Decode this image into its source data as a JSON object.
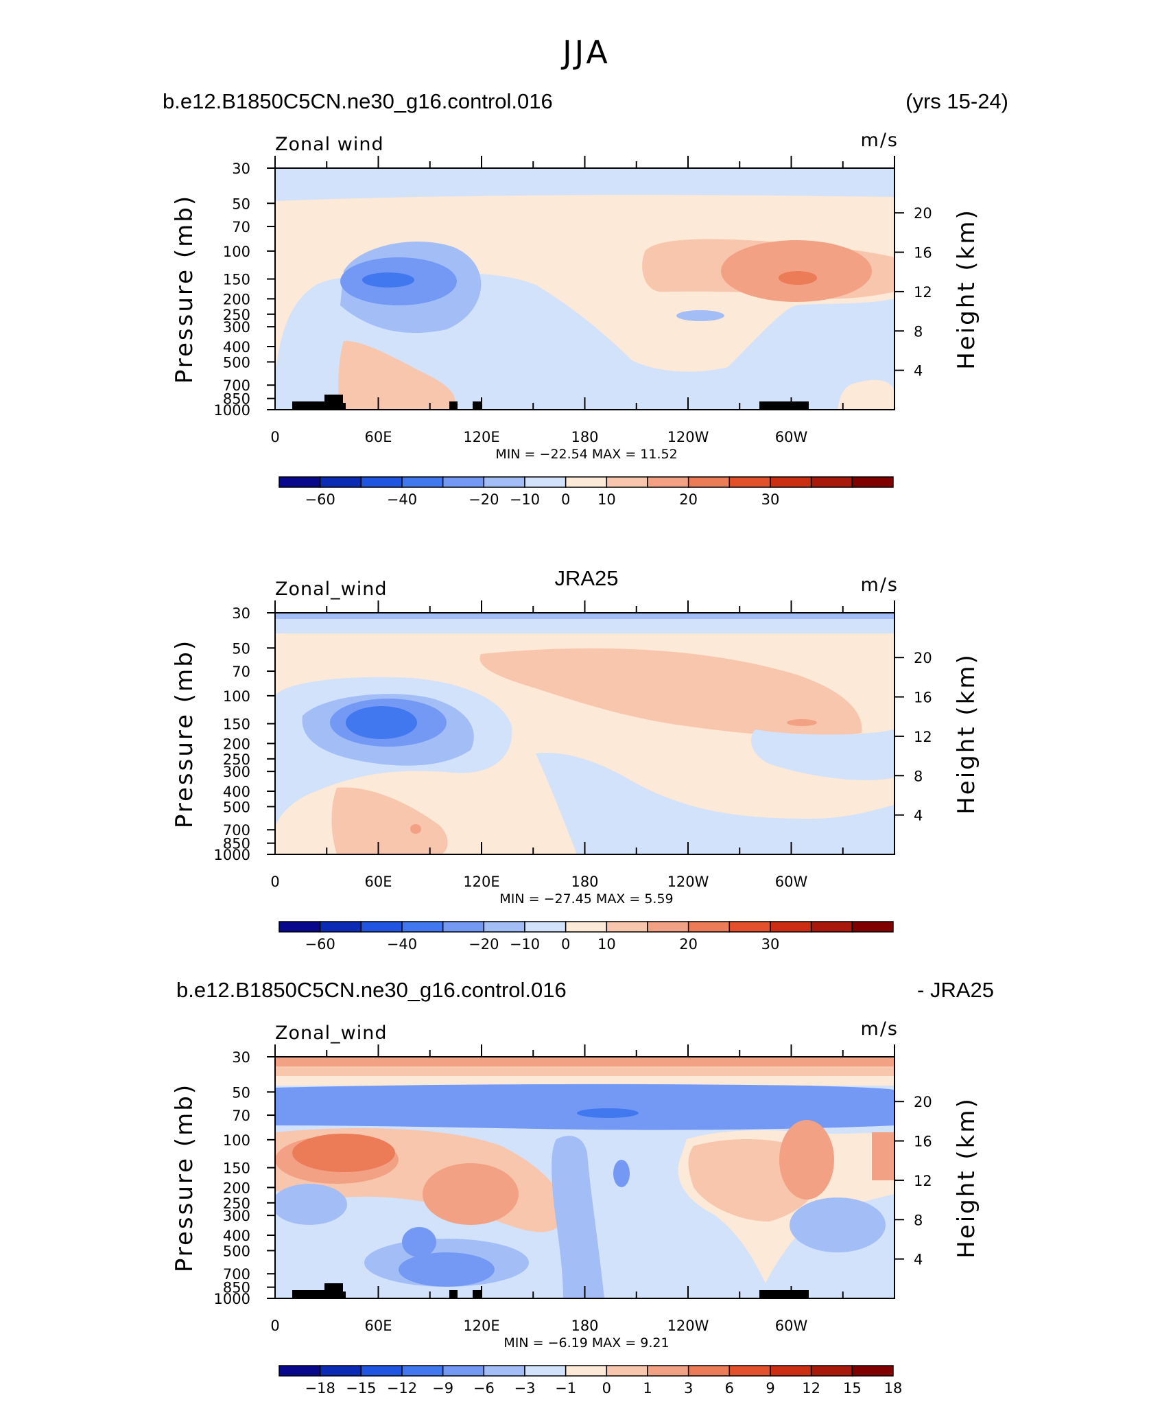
{
  "page": {
    "title": "JJA",
    "case_name": "b.e12.B1850C5CN.ne30_g16.control.016",
    "years": "(yrs 15-24)",
    "obs_name": "JRA25",
    "diff_right": "- JRA25"
  },
  "common": {
    "left_ylabel": "Pressure (mb)",
    "right_ylabel": "Height (km)",
    "units": "m/s",
    "pressure_ticks": [
      "30",
      "50",
      "70",
      "100",
      "150",
      "200",
      "250",
      "300",
      "400",
      "500",
      "700",
      "850",
      "1000"
    ],
    "height_ticks": [
      "20",
      "16",
      "12",
      "8",
      "4"
    ],
    "lon_labels": [
      "0",
      "60E",
      "120E",
      "180",
      "120W",
      "60W"
    ]
  },
  "colors": {
    "abs_levels": [
      "#08088c",
      "#0c2bb4",
      "#1f55e0",
      "#4178f0",
      "#7399f4",
      "#a3bef7",
      "#d1e2fa",
      "#fde9d7",
      "#f8c6ad",
      "#f2a184",
      "#ec7b57",
      "#e3512c",
      "#cc2e14",
      "#a8180b",
      "#800000"
    ],
    "diff_levels": [
      "#08088c",
      "#0c2bb4",
      "#1f55e0",
      "#4178f0",
      "#7399f4",
      "#a3bef7",
      "#d1e2fa",
      "#fde9d7",
      "#f8c6ad",
      "#f2a184",
      "#ec7b57",
      "#e3512c",
      "#cc2e14",
      "#a8180b",
      "#800000"
    ]
  },
  "panels": [
    {
      "header_left": "b.e12.B1850C5CN.ne30_g16.control.016",
      "header_right": "(yrs 15-24)",
      "field_label": "Zonal wind",
      "units": "m/s",
      "stats": "MIN =  −22.54   MAX =   11.52",
      "colorbar_labels": [
        "−60",
        "−40",
        "−20",
        "−10",
        "0",
        "10",
        "20",
        "30"
      ],
      "has_topo": true
    },
    {
      "header_left": "",
      "header_center": "JRA25",
      "field_label": "Zonal_wind",
      "units": "m/s",
      "stats": "MIN =  −27.45   MAX =    5.59",
      "colorbar_labels": [
        "−60",
        "−40",
        "−20",
        "−10",
        "0",
        "10",
        "20",
        "30"
      ],
      "has_topo": false
    },
    {
      "header_left": "b.e12.B1850C5CN.ne30_g16.control.016",
      "header_right": "- JRA25",
      "field_label": "Zonal_wind",
      "units": "m/s",
      "stats": "MIN =    −6.19   MAX =    9.21",
      "colorbar_labels": [
        "−18",
        "−15",
        "−12",
        "−9",
        "−6",
        "−3",
        "−1",
        "0",
        "1",
        "3",
        "6",
        "9",
        "12",
        "15",
        "18"
      ],
      "has_topo": true
    }
  ],
  "chart_data": [
    {
      "type": "heatmap",
      "title": "b.e12.B1850C5CN.ne30_g16.control.016",
      "variable": "Zonal wind",
      "units": "m/s",
      "season": "JJA",
      "x": [
        "0",
        "60E",
        "120E",
        "180",
        "120W",
        "60W"
      ],
      "y_pressure_mb": [
        30,
        50,
        70,
        100,
        150,
        200,
        250,
        300,
        400,
        500,
        700,
        850,
        1000
      ],
      "y_height_km": [
        20,
        16,
        12,
        8,
        4
      ],
      "min": -22.54,
      "max": 11.52,
      "contour_levels": [
        -60,
        -40,
        -20,
        -10,
        0,
        10,
        20,
        30
      ]
    },
    {
      "type": "heatmap",
      "title": "JRA25",
      "variable": "Zonal_wind",
      "units": "m/s",
      "season": "JJA",
      "x": [
        "0",
        "60E",
        "120E",
        "180",
        "120W",
        "60W"
      ],
      "y_pressure_mb": [
        30,
        50,
        70,
        100,
        150,
        200,
        250,
        300,
        400,
        500,
        700,
        850,
        1000
      ],
      "y_height_km": [
        20,
        16,
        12,
        8,
        4
      ],
      "min": -27.45,
      "max": 5.59,
      "contour_levels": [
        -60,
        -40,
        -20,
        -10,
        0,
        10,
        20,
        30
      ]
    },
    {
      "type": "heatmap",
      "title": "b.e12.B1850C5CN.ne30_g16.control.016 - JRA25",
      "variable": "Zonal_wind",
      "units": "m/s",
      "season": "JJA",
      "x": [
        "0",
        "60E",
        "120E",
        "180",
        "120W",
        "60W"
      ],
      "y_pressure_mb": [
        30,
        50,
        70,
        100,
        150,
        200,
        250,
        300,
        400,
        500,
        700,
        850,
        1000
      ],
      "y_height_km": [
        20,
        16,
        12,
        8,
        4
      ],
      "min": -6.19,
      "max": 9.21,
      "contour_levels": [
        -18,
        -15,
        -12,
        -9,
        -6,
        -3,
        -1,
        0,
        1,
        3,
        6,
        9,
        12,
        15,
        18
      ]
    }
  ]
}
